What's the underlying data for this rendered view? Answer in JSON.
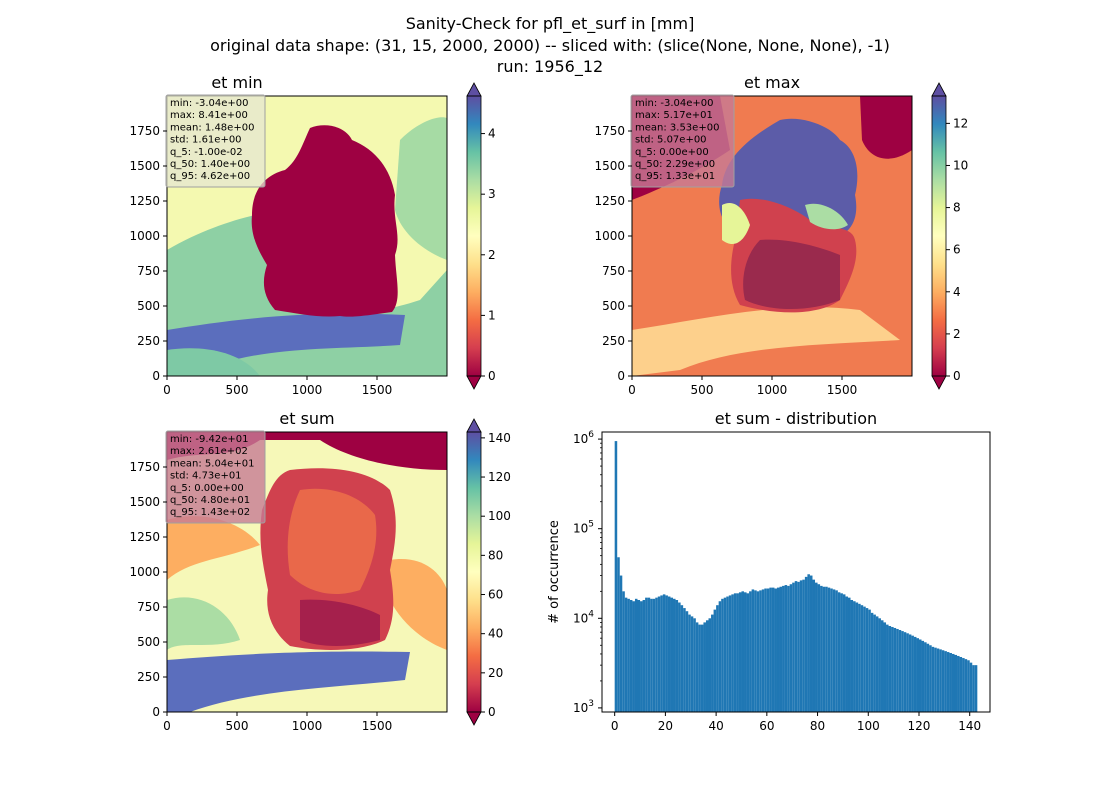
{
  "suptitle": [
    "Sanity-Check for pfl_et_surf in [mm]",
    "original data shape: (31, 15, 2000, 2000) -- sliced with: (slice(None, None, None), -1)",
    "run: 1956_12"
  ],
  "colors": {
    "spectral": [
      "#9e0142",
      "#d53e4f",
      "#f46d43",
      "#fdae61",
      "#fee08b",
      "#ffffbf",
      "#e6f598",
      "#abdda4",
      "#66c2a5",
      "#3288bd",
      "#5e4fa2"
    ],
    "histogram": "#1f77b4",
    "statsbox_light": "#e6e6d2",
    "statsbox_dark": "#c77a95"
  },
  "chart_data": [
    {
      "type": "heatmap",
      "title": "et min",
      "x_ticks": [
        0,
        500,
        1000,
        1500
      ],
      "y_ticks": [
        0,
        250,
        500,
        750,
        1000,
        1250,
        1500,
        1750
      ],
      "xlim": [
        0,
        2000
      ],
      "ylim": [
        0,
        2000
      ],
      "colorbar": {
        "min": 0,
        "max": 4.62,
        "ticks": [
          0,
          1,
          2,
          3,
          4
        ],
        "extend": "both"
      },
      "stats": [
        "min: -3.04e+00",
        "max: 8.41e+00",
        "mean: 1.48e+00",
        "std: 1.61e+00",
        "q_5: -1.00e-02",
        "q_50: 1.40e+00",
        "q_95: 4.62e+00"
      ],
      "statsbox": "light"
    },
    {
      "type": "heatmap",
      "title": "et max",
      "x_ticks": [
        0,
        500,
        1000,
        1500
      ],
      "y_ticks": [
        0,
        250,
        500,
        750,
        1000,
        1250,
        1500,
        1750
      ],
      "xlim": [
        0,
        2000
      ],
      "ylim": [
        0,
        2000
      ],
      "colorbar": {
        "min": 0,
        "max": 13.3,
        "ticks": [
          0,
          2,
          4,
          6,
          8,
          10,
          12
        ],
        "extend": "both"
      },
      "stats": [
        "min: -3.04e+00",
        "max: 5.17e+01",
        "mean: 3.53e+00",
        "std: 5.07e+00",
        "q_5: 0.00e+00",
        "q_50: 2.29e+00",
        "q_95: 1.33e+01"
      ],
      "statsbox": "dark"
    },
    {
      "type": "heatmap",
      "title": "et sum",
      "x_ticks": [
        0,
        500,
        1000,
        1500
      ],
      "y_ticks": [
        0,
        250,
        500,
        750,
        1000,
        1250,
        1500,
        1750
      ],
      "xlim": [
        0,
        2000
      ],
      "ylim": [
        0,
        2000
      ],
      "colorbar": {
        "min": 0,
        "max": 143,
        "ticks": [
          0,
          20,
          40,
          60,
          80,
          100,
          120,
          140
        ],
        "extend": "both"
      },
      "stats": [
        "min: -9.42e+01",
        "max: 2.61e+02",
        "mean: 5.04e+01",
        "std: 4.73e+01",
        "q_5: 0.00e+00",
        "q_50: 4.80e+01",
        "q_95: 1.43e+02"
      ],
      "statsbox": "dark"
    },
    {
      "type": "bar",
      "title": "et sum - distribution",
      "ylabel": "# of occurrence",
      "yscale": "log",
      "xlim": [
        -5,
        148
      ],
      "ylim": [
        900,
        1200000
      ],
      "x_ticks": [
        0,
        20,
        40,
        60,
        80,
        100,
        120,
        140
      ],
      "y_ticks": [
        {
          "value": 1000,
          "label": "10",
          "exp": "3"
        },
        {
          "value": 10000,
          "label": "10",
          "exp": "4"
        },
        {
          "value": 100000,
          "label": "10",
          "exp": "5"
        },
        {
          "value": 1000000,
          "label": "10",
          "exp": "6"
        }
      ],
      "bin_start": 0,
      "bin_width": 1,
      "values": [
        950000,
        48000,
        30000,
        20000,
        17000,
        16500,
        16000,
        15500,
        16500,
        16000,
        15500,
        16000,
        17000,
        17000,
        16500,
        16500,
        17000,
        17500,
        18000,
        18500,
        18000,
        17500,
        17000,
        16500,
        16000,
        15000,
        14000,
        13000,
        12000,
        11000,
        10500,
        10000,
        9000,
        8500,
        8500,
        9000,
        9500,
        10000,
        11000,
        12500,
        14000,
        15500,
        16500,
        17000,
        17500,
        18000,
        18500,
        19000,
        19000,
        19500,
        20000,
        19500,
        19000,
        20000,
        21000,
        20500,
        20000,
        20500,
        21000,
        21500,
        21500,
        22000,
        22000,
        21500,
        22000,
        22500,
        23000,
        23500,
        23000,
        24000,
        25000,
        26000,
        25500,
        26500,
        27000,
        29000,
        31000,
        30000,
        27000,
        25000,
        24000,
        23000,
        22500,
        22500,
        22000,
        21500,
        21000,
        20500,
        19500,
        19000,
        18500,
        17500,
        17000,
        16000,
        15500,
        15000,
        14500,
        14000,
        13500,
        13000,
        12500,
        11500,
        11000,
        10500,
        10000,
        9500,
        9000,
        8500,
        8200,
        8000,
        7800,
        7600,
        7400,
        7200,
        7000,
        6800,
        6600,
        6400,
        6200,
        6000,
        5800,
        5600,
        5400,
        5200,
        5000,
        4800,
        4700,
        4600,
        4500,
        4400,
        4300,
        4200,
        4100,
        4000,
        3900,
        3800,
        3700,
        3600,
        3500,
        3400,
        3200,
        3000,
        3000
      ]
    }
  ]
}
